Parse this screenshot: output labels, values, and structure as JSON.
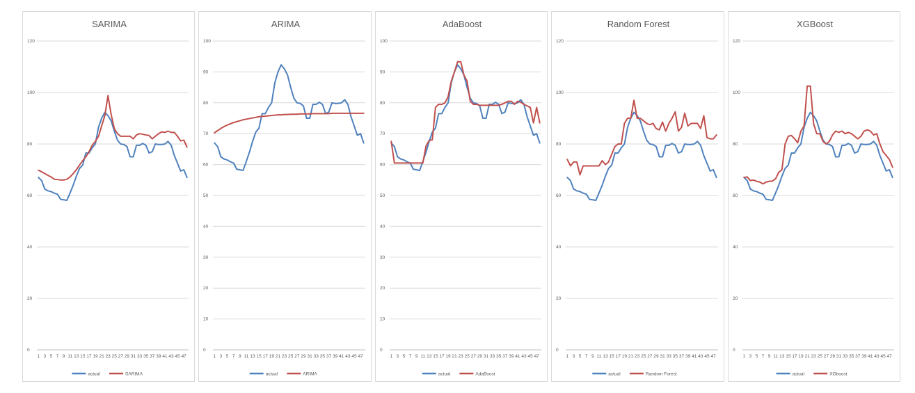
{
  "colors": {
    "actual": "#4f81bd",
    "predicted": "#c0504d",
    "grid": "#d9d9d9",
    "text": "#595959"
  },
  "chart_data": [
    {
      "type": "line",
      "title": "SARIMA",
      "x": [
        1,
        2,
        3,
        4,
        5,
        6,
        7,
        8,
        9,
        10,
        11,
        12,
        13,
        14,
        15,
        16,
        17,
        18,
        19,
        20,
        21,
        22,
        23,
        24,
        25,
        26,
        27,
        28,
        29,
        30,
        31,
        32,
        33,
        34,
        35,
        36,
        37,
        38,
        39,
        40,
        41,
        42,
        43,
        44,
        45,
        46,
        47,
        48
      ],
      "x_tick_labels": [
        "1",
        "3",
        "5",
        "7",
        "9",
        "11",
        "13",
        "15",
        "17",
        "19",
        "21",
        "23",
        "25",
        "27",
        "29",
        "31",
        "33",
        "35",
        "37",
        "39",
        "41",
        "43",
        "45",
        "47"
      ],
      "ylim": [
        0,
        120
      ],
      "y_ticks": [
        0,
        20,
        40,
        60,
        80,
        100,
        120
      ],
      "legend_position": "bottom",
      "series": [
        {
          "name": "actual",
          "values": [
            67,
            65.8,
            62.5,
            61.8,
            61.5,
            60.9,
            60.5,
            58.5,
            58.3,
            58.1,
            61,
            64,
            67.5,
            70.5,
            71.8,
            76.5,
            76.5,
            78.5,
            80,
            86.5,
            90,
            92.3,
            91,
            89,
            85,
            81.5,
            80,
            79.8,
            79,
            75,
            75,
            79.5,
            79.5,
            80.2,
            79.5,
            76.5,
            77,
            80,
            79.8,
            79.8,
            80,
            81,
            79.5,
            75.5,
            72.5,
            69.5,
            70,
            67
          ]
        },
        {
          "name": "SARIMA",
          "values": [
            69.8,
            69.2,
            68.5,
            67.8,
            67.2,
            66.3,
            66.2,
            66,
            66,
            66.3,
            67.2,
            68.5,
            70,
            71.8,
            73.5,
            75,
            77,
            79.5,
            81,
            83,
            87,
            91,
            98.8,
            91.5,
            86,
            84,
            83,
            83,
            83,
            83,
            82,
            83.5,
            84,
            83.8,
            83.5,
            83.3,
            82,
            83,
            84,
            84.7,
            84.5,
            85,
            84.5,
            84.5,
            83,
            81.2,
            81.5,
            78.8
          ]
        }
      ]
    },
    {
      "type": "line",
      "title": "ARIMA",
      "x": [
        1,
        2,
        3,
        4,
        5,
        6,
        7,
        8,
        9,
        10,
        11,
        12,
        13,
        14,
        15,
        16,
        17,
        18,
        19,
        20,
        21,
        22,
        23,
        24,
        25,
        26,
        27,
        28,
        29,
        30,
        31,
        32,
        33,
        34,
        35,
        36,
        37,
        38,
        39,
        40,
        41,
        42,
        43,
        44,
        45,
        46,
        47,
        48
      ],
      "x_tick_labels": [
        "1",
        "3",
        "5",
        "7",
        "9",
        "11",
        "13",
        "15",
        "17",
        "19",
        "21",
        "23",
        "25",
        "27",
        "29",
        "31",
        "33",
        "35",
        "37",
        "39",
        "41",
        "43",
        "45",
        "47"
      ],
      "ylim": [
        0,
        100
      ],
      "y_ticks": [
        0,
        10,
        20,
        30,
        40,
        50,
        60,
        70,
        80,
        90,
        100
      ],
      "legend_position": "bottom",
      "series": [
        {
          "name": "actual",
          "values": [
            67,
            65.8,
            62.5,
            61.8,
            61.5,
            60.9,
            60.5,
            58.5,
            58.3,
            58.1,
            61,
            64,
            67.5,
            70.5,
            71.8,
            76.5,
            76.5,
            78.5,
            80,
            86.5,
            90,
            92.3,
            91,
            89,
            85,
            81.5,
            80,
            79.8,
            79,
            75,
            75,
            79.5,
            79.5,
            80.2,
            79.5,
            76.5,
            77,
            80,
            79.8,
            79.8,
            80,
            81,
            79.5,
            75.5,
            72.5,
            69.5,
            70,
            67
          ]
        },
        {
          "name": "ARIMA",
          "values": [
            70.3,
            71,
            71.7,
            72.3,
            72.8,
            73.2,
            73.6,
            73.9,
            74.2,
            74.5,
            74.7,
            74.9,
            75.1,
            75.3,
            75.5,
            75.6,
            75.7,
            75.8,
            75.9,
            76,
            76.1,
            76.1,
            76.2,
            76.2,
            76.3,
            76.3,
            76.3,
            76.4,
            76.4,
            76.4,
            76.4,
            76.5,
            76.5,
            76.5,
            76.5,
            76.5,
            76.5,
            76.6,
            76.6,
            76.6,
            76.6,
            76.6,
            76.6,
            76.6,
            76.6,
            76.6,
            76.6,
            76.6
          ]
        }
      ]
    },
    {
      "type": "line",
      "title": "AdaBoost",
      "x": [
        1,
        2,
        3,
        4,
        5,
        6,
        7,
        8,
        9,
        10,
        11,
        12,
        13,
        14,
        15,
        16,
        17,
        18,
        19,
        20,
        21,
        22,
        23,
        24,
        25,
        26,
        27,
        28,
        29,
        30,
        31,
        32,
        33,
        34,
        35,
        36,
        37,
        38,
        39,
        40,
        41,
        42,
        43,
        44,
        45,
        46,
        47,
        48
      ],
      "x_tick_labels": [
        "1",
        "3",
        "5",
        "7",
        "9",
        "11",
        "13",
        "15",
        "17",
        "19",
        "21",
        "23",
        "25",
        "27",
        "29",
        "31",
        "33",
        "35",
        "37",
        "39",
        "41",
        "43",
        "45",
        "47"
      ],
      "ylim": [
        0,
        100
      ],
      "y_ticks": [
        0,
        10,
        20,
        30,
        40,
        50,
        60,
        70,
        80,
        90,
        100
      ],
      "legend_position": "bottom",
      "series": [
        {
          "name": "actual",
          "values": [
            67,
            65.8,
            62.5,
            61.8,
            61.5,
            60.9,
            60.5,
            58.5,
            58.3,
            58.1,
            61,
            64,
            67.5,
            70.5,
            71.8,
            76.5,
            76.5,
            78.5,
            80,
            86.5,
            90,
            92.3,
            91,
            89,
            85,
            81.5,
            80,
            79.8,
            79,
            75,
            75,
            79.5,
            79.5,
            80.2,
            79.5,
            76.5,
            77,
            80,
            79.8,
            79.8,
            80,
            81,
            79.5,
            75.5,
            72.5,
            69.5,
            70,
            67
          ]
        },
        {
          "name": "AdaBoost",
          "values": [
            67.5,
            60.5,
            60.5,
            60.5,
            60.5,
            60.5,
            60.5,
            60.5,
            60.5,
            60.5,
            60.5,
            66,
            67.8,
            68,
            78.5,
            79.5,
            79.5,
            80,
            82,
            87,
            90,
            93.3,
            93.3,
            89,
            87,
            80.5,
            79.5,
            79.5,
            79.2,
            79.2,
            79.2,
            79.2,
            79.2,
            79.2,
            79.2,
            79.5,
            80,
            80.5,
            80.5,
            79.5,
            80.5,
            80.2,
            79.5,
            79,
            78.5,
            73.5,
            78.5,
            73.5
          ]
        }
      ]
    },
    {
      "type": "line",
      "title": "Random Forest",
      "x": [
        1,
        2,
        3,
        4,
        5,
        6,
        7,
        8,
        9,
        10,
        11,
        12,
        13,
        14,
        15,
        16,
        17,
        18,
        19,
        20,
        21,
        22,
        23,
        24,
        25,
        26,
        27,
        28,
        29,
        30,
        31,
        32,
        33,
        34,
        35,
        36,
        37,
        38,
        39,
        40,
        41,
        42,
        43,
        44,
        45,
        46,
        47,
        48
      ],
      "x_tick_labels": [
        "1",
        "3",
        "5",
        "7",
        "9",
        "11",
        "13",
        "15",
        "17",
        "19",
        "21",
        "23",
        "25",
        "27",
        "29",
        "31",
        "33",
        "35",
        "37",
        "39",
        "41",
        "43",
        "45",
        "47"
      ],
      "ylim": [
        0,
        120
      ],
      "y_ticks": [
        0,
        20,
        40,
        60,
        80,
        100,
        120
      ],
      "legend_position": "bottom",
      "series": [
        {
          "name": "actual",
          "values": [
            67,
            65.8,
            62.5,
            61.8,
            61.5,
            60.9,
            60.5,
            58.5,
            58.3,
            58.1,
            61,
            64,
            67.5,
            70.5,
            71.8,
            76.5,
            76.5,
            78.5,
            80,
            86.5,
            90,
            92.3,
            91,
            89,
            85,
            81.5,
            80,
            79.8,
            79,
            75,
            75,
            79.5,
            79.5,
            80.2,
            79.5,
            76.5,
            77,
            80,
            79.8,
            79.8,
            80,
            81,
            79.5,
            75.5,
            72.5,
            69.5,
            70,
            67
          ]
        },
        {
          "name": "Random Forest",
          "values": [
            74,
            71.5,
            73,
            73,
            68,
            71.5,
            71.5,
            71.5,
            71.5,
            71.5,
            71.5,
            73.5,
            72,
            73,
            76,
            79,
            80,
            80,
            88,
            90,
            90,
            97,
            90,
            90,
            89,
            88,
            87.5,
            88,
            86,
            85.5,
            88.5,
            85,
            88,
            90,
            92.5,
            85,
            86.5,
            92,
            87,
            88,
            88,
            88,
            86,
            91,
            82.5,
            82,
            82,
            83.5
          ]
        }
      ]
    },
    {
      "type": "line",
      "title": "XGBoost",
      "x": [
        1,
        2,
        3,
        4,
        5,
        6,
        7,
        8,
        9,
        10,
        11,
        12,
        13,
        14,
        15,
        16,
        17,
        18,
        19,
        20,
        21,
        22,
        23,
        24,
        25,
        26,
        27,
        28,
        29,
        30,
        31,
        32,
        33,
        34,
        35,
        36,
        37,
        38,
        39,
        40,
        41,
        42,
        43,
        44,
        45,
        46,
        47,
        48
      ],
      "x_tick_labels": [
        "1",
        "3",
        "5",
        "7",
        "9",
        "11",
        "13",
        "15",
        "17",
        "19",
        "21",
        "23",
        "25",
        "27",
        "29",
        "31",
        "33",
        "35",
        "37",
        "39",
        "41",
        "43",
        "45",
        "47"
      ],
      "ylim": [
        0,
        120
      ],
      "y_ticks": [
        0,
        20,
        40,
        60,
        80,
        100,
        120
      ],
      "legend_position": "bottom",
      "series": [
        {
          "name": "actual",
          "values": [
            67,
            65.8,
            62.5,
            61.8,
            61.5,
            60.9,
            60.5,
            58.5,
            58.3,
            58.1,
            61,
            64,
            67.5,
            70.5,
            71.8,
            76.5,
            76.5,
            78.5,
            80,
            86.5,
            90,
            92.3,
            91,
            89,
            85,
            81.5,
            80,
            79.8,
            79,
            75,
            75,
            79.5,
            79.5,
            80.2,
            79.5,
            76.5,
            77,
            80,
            79.8,
            79.8,
            80,
            81,
            79.5,
            75.5,
            72.5,
            69.5,
            70,
            67
          ]
        },
        {
          "name": "XGboost",
          "values": [
            67,
            67.2,
            65.8,
            66,
            65.5,
            65.2,
            64.5,
            65.2,
            65.5,
            65.6,
            66.5,
            69,
            70,
            80,
            83,
            83.3,
            82,
            80.5,
            85,
            87,
            102.5,
            102.5,
            88,
            84,
            84,
            81,
            80,
            81,
            83.5,
            85,
            84.5,
            85,
            84,
            84.5,
            84,
            83,
            82,
            83,
            85,
            85.5,
            85,
            83.5,
            84,
            80,
            77,
            75.5,
            74,
            71
          ]
        }
      ]
    }
  ]
}
